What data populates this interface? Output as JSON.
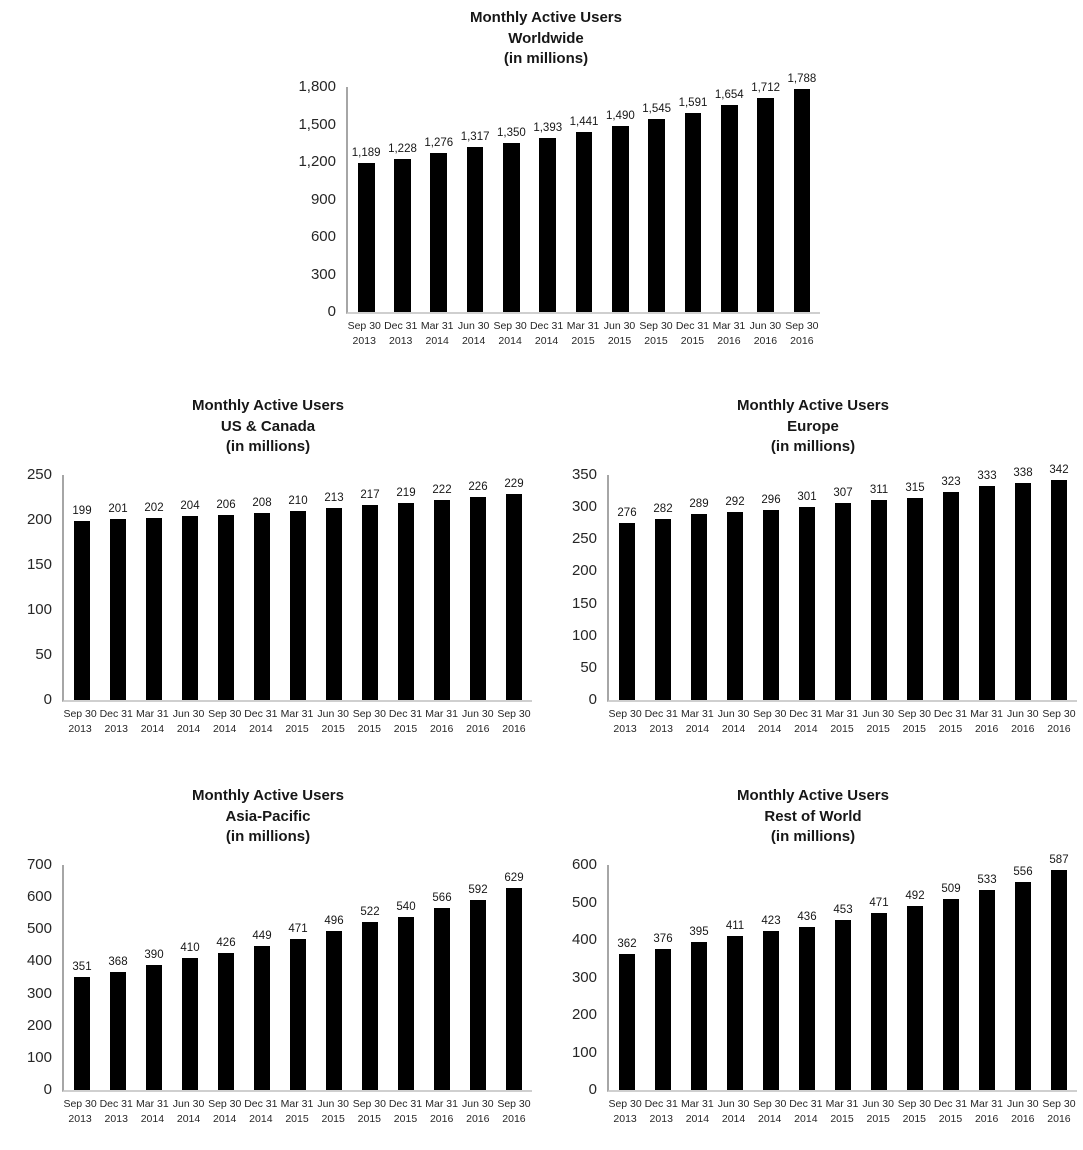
{
  "colors": {
    "bar": "#000000",
    "axis_line": "#a6a6a6",
    "baseline": "#cfcfcf",
    "text": "#171717",
    "background": "#ffffff"
  },
  "chart_data": [
    {
      "id": "worldwide",
      "type": "bar",
      "title": "Monthly Active Users Worldwide (in millions)",
      "title_lines": [
        "Monthly Active Users",
        "Worldwide",
        "(in millions)"
      ],
      "xlabel": "",
      "ylabel": "",
      "ylim": [
        0,
        1800
      ],
      "yticks": [
        "0",
        "300",
        "600",
        "900",
        "1,200",
        "1,500",
        "1,800"
      ],
      "grid": false,
      "legend": false,
      "categories": [
        "Sep 30 2013",
        "Dec 31 2013",
        "Mar 31 2014",
        "Jun 30 2014",
        "Sep 30 2014",
        "Dec 31 2014",
        "Mar 31 2015",
        "Jun 30 2015",
        "Sep 30 2015",
        "Dec 31 2015",
        "Mar 31 2016",
        "Jun 30 2016",
        "Sep 30 2016"
      ],
      "category_lines": [
        [
          "Sep 30",
          "2013"
        ],
        [
          "Dec 31",
          "2013"
        ],
        [
          "Mar 31",
          "2014"
        ],
        [
          "Jun 30",
          "2014"
        ],
        [
          "Sep 30",
          "2014"
        ],
        [
          "Dec 31",
          "2014"
        ],
        [
          "Mar 31",
          "2015"
        ],
        [
          "Jun 30",
          "2015"
        ],
        [
          "Sep 30",
          "2015"
        ],
        [
          "Dec 31",
          "2015"
        ],
        [
          "Mar 31",
          "2016"
        ],
        [
          "Jun 30",
          "2016"
        ],
        [
          "Sep 30",
          "2016"
        ]
      ],
      "values": [
        1189,
        1228,
        1276,
        1317,
        1350,
        1393,
        1441,
        1490,
        1545,
        1591,
        1654,
        1712,
        1788
      ],
      "value_labels": [
        "1,189",
        "1,228",
        "1,276",
        "1,317",
        "1,350",
        "1,393",
        "1,441",
        "1,490",
        "1,545",
        "1,591",
        "1,654",
        "1,712",
        "1,788"
      ]
    },
    {
      "id": "us-canada",
      "type": "bar",
      "title": "Monthly Active Users US & Canada (in millions)",
      "title_lines": [
        "Monthly Active Users",
        "US & Canada",
        "(in millions)"
      ],
      "xlabel": "",
      "ylabel": "",
      "ylim": [
        0,
        250
      ],
      "yticks": [
        "0",
        "50",
        "100",
        "150",
        "200",
        "250"
      ],
      "grid": false,
      "legend": false,
      "categories": [
        "Sep 30 2013",
        "Dec 31 2013",
        "Mar 31 2014",
        "Jun 30 2014",
        "Sep 30 2014",
        "Dec 31 2014",
        "Mar 31 2015",
        "Jun 30 2015",
        "Sep 30 2015",
        "Dec 31 2015",
        "Mar 31 2016",
        "Jun 30 2016",
        "Sep 30 2016"
      ],
      "category_lines": [
        [
          "Sep 30",
          "2013"
        ],
        [
          "Dec 31",
          "2013"
        ],
        [
          "Mar 31",
          "2014"
        ],
        [
          "Jun 30",
          "2014"
        ],
        [
          "Sep 30",
          "2014"
        ],
        [
          "Dec 31",
          "2014"
        ],
        [
          "Mar 31",
          "2015"
        ],
        [
          "Jun 30",
          "2015"
        ],
        [
          "Sep 30",
          "2015"
        ],
        [
          "Dec 31",
          "2015"
        ],
        [
          "Mar 31",
          "2016"
        ],
        [
          "Jun 30",
          "2016"
        ],
        [
          "Sep 30",
          "2016"
        ]
      ],
      "values": [
        199,
        201,
        202,
        204,
        206,
        208,
        210,
        213,
        217,
        219,
        222,
        226,
        229
      ],
      "value_labels": [
        "199",
        "201",
        "202",
        "204",
        "206",
        "208",
        "210",
        "213",
        "217",
        "219",
        "222",
        "226",
        "229"
      ]
    },
    {
      "id": "europe",
      "type": "bar",
      "title": "Monthly Active Users Europe (in millions)",
      "title_lines": [
        "Monthly Active Users",
        "Europe",
        "(in millions)"
      ],
      "xlabel": "",
      "ylabel": "",
      "ylim": [
        0,
        350
      ],
      "yticks": [
        "0",
        "50",
        "100",
        "150",
        "200",
        "250",
        "300",
        "350"
      ],
      "grid": false,
      "legend": false,
      "categories": [
        "Sep 30 2013",
        "Dec 31 2013",
        "Mar 31 2014",
        "Jun 30 2014",
        "Sep 30 2014",
        "Dec 31 2014",
        "Mar 31 2015",
        "Jun 30 2015",
        "Sep 30 2015",
        "Dec 31 2015",
        "Mar 31 2016",
        "Jun 30 2016",
        "Sep 30 2016"
      ],
      "category_lines": [
        [
          "Sep 30",
          "2013"
        ],
        [
          "Dec 31",
          "2013"
        ],
        [
          "Mar 31",
          "2014"
        ],
        [
          "Jun 30",
          "2014"
        ],
        [
          "Sep 30",
          "2014"
        ],
        [
          "Dec 31",
          "2014"
        ],
        [
          "Mar 31",
          "2015"
        ],
        [
          "Jun 30",
          "2015"
        ],
        [
          "Sep 30",
          "2015"
        ],
        [
          "Dec 31",
          "2015"
        ],
        [
          "Mar 31",
          "2016"
        ],
        [
          "Jun 30",
          "2016"
        ],
        [
          "Sep 30",
          "2016"
        ]
      ],
      "values": [
        276,
        282,
        289,
        292,
        296,
        301,
        307,
        311,
        315,
        323,
        333,
        338,
        342
      ],
      "value_labels": [
        "276",
        "282",
        "289",
        "292",
        "296",
        "301",
        "307",
        "311",
        "315",
        "323",
        "333",
        "338",
        "342"
      ]
    },
    {
      "id": "asia-pacific",
      "type": "bar",
      "title": "Monthly Active Users Asia-Pacific (in millions)",
      "title_lines": [
        "Monthly Active Users",
        "Asia-Pacific",
        "(in millions)"
      ],
      "xlabel": "",
      "ylabel": "",
      "ylim": [
        0,
        700
      ],
      "yticks": [
        "0",
        "100",
        "200",
        "300",
        "400",
        "500",
        "600",
        "700"
      ],
      "grid": false,
      "legend": false,
      "categories": [
        "Sep 30 2013",
        "Dec 31 2013",
        "Mar 31 2014",
        "Jun 30 2014",
        "Sep 30 2014",
        "Dec 31 2014",
        "Mar 31 2015",
        "Jun 30 2015",
        "Sep 30 2015",
        "Dec 31 2015",
        "Mar 31 2016",
        "Jun 30 2016",
        "Sep 30 2016"
      ],
      "category_lines": [
        [
          "Sep 30",
          "2013"
        ],
        [
          "Dec 31",
          "2013"
        ],
        [
          "Mar 31",
          "2014"
        ],
        [
          "Jun 30",
          "2014"
        ],
        [
          "Sep 30",
          "2014"
        ],
        [
          "Dec 31",
          "2014"
        ],
        [
          "Mar 31",
          "2015"
        ],
        [
          "Jun 30",
          "2015"
        ],
        [
          "Sep 30",
          "2015"
        ],
        [
          "Dec 31",
          "2015"
        ],
        [
          "Mar 31",
          "2016"
        ],
        [
          "Jun 30",
          "2016"
        ],
        [
          "Sep 30",
          "2016"
        ]
      ],
      "values": [
        351,
        368,
        390,
        410,
        426,
        449,
        471,
        496,
        522,
        540,
        566,
        592,
        629
      ],
      "value_labels": [
        "351",
        "368",
        "390",
        "410",
        "426",
        "449",
        "471",
        "496",
        "522",
        "540",
        "566",
        "592",
        "629"
      ]
    },
    {
      "id": "rest-of-world",
      "type": "bar",
      "title": "Monthly Active Users Rest of World (in millions)",
      "title_lines": [
        "Monthly Active Users",
        "Rest of World",
        "(in millions)"
      ],
      "xlabel": "",
      "ylabel": "",
      "ylim": [
        0,
        600
      ],
      "yticks": [
        "0",
        "100",
        "200",
        "300",
        "400",
        "500",
        "600"
      ],
      "grid": false,
      "legend": false,
      "categories": [
        "Sep 30 2013",
        "Dec 31 2013",
        "Mar 31 2014",
        "Jun 30 2014",
        "Sep 30 2014",
        "Dec 31 2014",
        "Mar 31 2015",
        "Jun 30 2015",
        "Sep 30 2015",
        "Dec 31 2015",
        "Mar 31 2016",
        "Jun 30 2016",
        "Sep 30 2016"
      ],
      "category_lines": [
        [
          "Sep 30",
          "2013"
        ],
        [
          "Dec 31",
          "2013"
        ],
        [
          "Mar 31",
          "2014"
        ],
        [
          "Jun 30",
          "2014"
        ],
        [
          "Sep 30",
          "2014"
        ],
        [
          "Dec 31",
          "2014"
        ],
        [
          "Mar 31",
          "2015"
        ],
        [
          "Jun 30",
          "2015"
        ],
        [
          "Sep 30",
          "2015"
        ],
        [
          "Dec 31",
          "2015"
        ],
        [
          "Mar 31",
          "2016"
        ],
        [
          "Jun 30",
          "2016"
        ],
        [
          "Sep 30",
          "2016"
        ]
      ],
      "values": [
        362,
        376,
        395,
        411,
        423,
        436,
        453,
        471,
        492,
        509,
        533,
        556,
        587
      ],
      "value_labels": [
        "362",
        "376",
        "395",
        "411",
        "423",
        "436",
        "453",
        "471",
        "492",
        "509",
        "533",
        "556",
        "587"
      ]
    }
  ]
}
